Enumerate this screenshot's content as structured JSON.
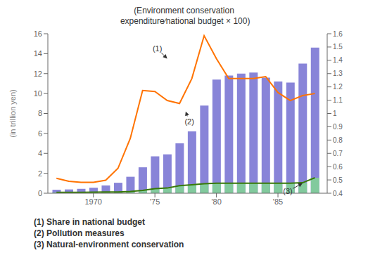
{
  "chart_data": {
    "type": "bar",
    "title": "(Environment conservation\n expenditure∕national budget × 100)",
    "ylabel": "(in trillion yen)",
    "x": [
      1967,
      1968,
      1969,
      1970,
      1971,
      1972,
      1973,
      1974,
      1975,
      1976,
      1977,
      1978,
      1979,
      1980,
      1981,
      1982,
      1983,
      1984,
      1985,
      1986,
      1987,
      1988
    ],
    "xlim": [
      1966.3,
      1989.0
    ],
    "xticks": [
      1970,
      {
        "value": 1975,
        "label": "'75"
      },
      {
        "value": 1980,
        "label": "'80"
      },
      {
        "value": 1985,
        "label": "'85"
      }
    ],
    "ylim": [
      0,
      16
    ],
    "yticks": [
      0,
      2,
      4,
      6,
      8,
      10,
      12,
      14,
      16
    ],
    "y2lim": [
      0.4,
      1.6
    ],
    "y2ticks": [
      0.4,
      0.5,
      0.6,
      0.7,
      0.8,
      0.9,
      1,
      1.1,
      1.2,
      1.3,
      1.4,
      1.5,
      1.6
    ],
    "legend": "bottom",
    "series": [
      {
        "name": "(1) Share in national budget",
        "type": "line",
        "color": "#ff7300",
        "values": [
          1.5,
          1.2,
          1.1,
          1.1,
          1.3,
          2.5,
          5.5,
          10.3,
          10.2,
          9.3,
          9.0,
          11.5,
          15.8,
          13.5,
          11.5,
          11.5,
          11.5,
          11.7,
          10.1,
          9.3,
          9.8,
          10.0
        ]
      },
      {
        "name": "(2) Pollution measures",
        "type": "bar",
        "color": "#8884d8",
        "values": [
          0.35,
          0.38,
          0.44,
          0.55,
          0.78,
          1.05,
          1.65,
          2.6,
          3.7,
          3.9,
          5.0,
          6.2,
          8.8,
          11.4,
          11.8,
          12.0,
          12.1,
          11.6,
          11.2,
          11.1,
          13.0,
          14.6
        ]
      },
      {
        "name": "(3) Natural-environment conservation",
        "type": "bar",
        "color": "#82ca9d",
        "values": [
          0.08,
          0.08,
          0.09,
          0.1,
          0.12,
          0.13,
          0.18,
          0.28,
          0.45,
          0.52,
          0.75,
          0.85,
          0.95,
          1.0,
          1.0,
          1.0,
          1.0,
          1.0,
          1.0,
          1.0,
          1.05,
          1.55
        ]
      },
      {
        "type": "line",
        "color": "#387908",
        "values": [
          0.08,
          0.08,
          0.09,
          0.1,
          0.12,
          0.13,
          0.18,
          0.28,
          0.45,
          0.52,
          0.75,
          0.85,
          0.95,
          1.0,
          1.0,
          1.0,
          1.0,
          1.0,
          1.0,
          1.0,
          1.05,
          1.55
        ]
      }
    ],
    "annotations": [
      {
        "text": "(1)",
        "xy": [
          1976.0,
          13.5
        ],
        "xytext": [
          1975.2,
          14.5
        ]
      },
      {
        "text": "(2)",
        "xy": [
          1977.5,
          8.2
        ],
        "xytext": [
          1977.8,
          7.2
        ]
      },
      {
        "text": "(3)",
        "xy": [
          1987.0,
          1.0
        ],
        "xytext": [
          1985.8,
          0.2
        ]
      }
    ]
  }
}
